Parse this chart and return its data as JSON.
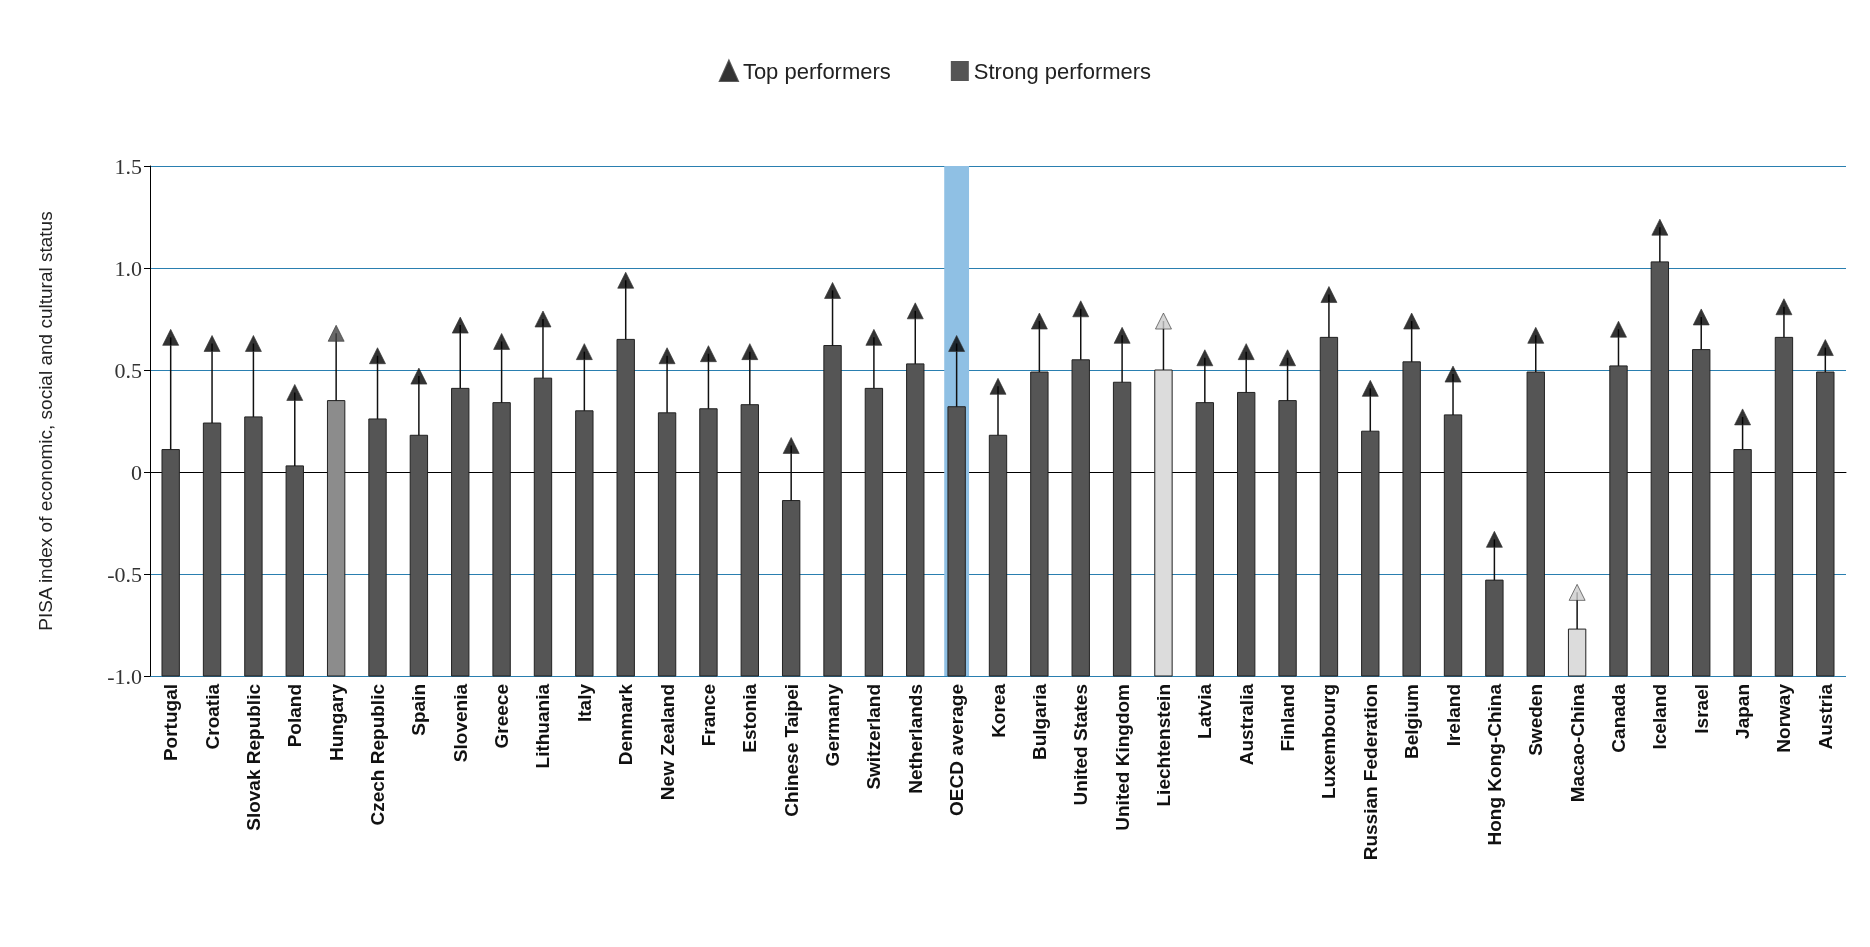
{
  "chart_data": {
    "type": "bar",
    "ylabel": "PISA index of economic, social and cultural status",
    "categories": [
      "Portugal",
      "Croatia",
      "Slovak Republic",
      "Poland",
      "Hungary",
      "Czech Republic",
      "Spain",
      "Slovenia",
      "Greece",
      "Lithuania",
      "Italy",
      "Denmark",
      "New Zealand",
      "France",
      "Estonia",
      "Chinese Taipei",
      "Germany",
      "Switzerland",
      "Netherlands",
      "OECD average",
      "Korea",
      "Bulgaria",
      "United States",
      "United Kingdom",
      "Liechtenstein",
      "Latvia",
      "Australia",
      "Finland",
      "Luxembourg",
      "Russian Federation",
      "Belgium",
      "Ireland",
      "Hong Kong-China",
      "Sweden",
      "Macao-China",
      "Canada",
      "Iceland",
      "Israel",
      "Japan",
      "Norway",
      "Austria"
    ],
    "series": [
      {
        "name": "Top performers",
        "type": "scatter",
        "color": "#000000",
        "marker": "triangle",
        "values": [
          0.66,
          0.63,
          0.63,
          0.39,
          0.68,
          0.57,
          0.47,
          0.72,
          0.64,
          0.75,
          0.59,
          0.94,
          0.57,
          0.58,
          0.59,
          0.13,
          0.89,
          0.66,
          0.79,
          0.63,
          0.42,
          0.74,
          0.8,
          0.67,
          0.74,
          0.56,
          0.59,
          0.56,
          0.87,
          0.41,
          0.74,
          0.48,
          -0.33,
          0.67,
          -0.59,
          0.7,
          1.2,
          0.76,
          0.27,
          0.81,
          0.61
        ],
        "errors": [
          [
            0.11,
            0.66
          ],
          [
            0.24,
            0.63
          ],
          [
            0.27,
            0.63
          ],
          [
            0.03,
            0.39
          ],
          [
            0.35,
            0.68
          ],
          [
            0.26,
            0.57
          ],
          [
            0.18,
            0.47
          ],
          [
            0.41,
            0.72
          ],
          [
            0.34,
            0.64
          ],
          [
            0.46,
            0.75
          ],
          [
            0.3,
            0.59
          ],
          [
            0.65,
            0.94
          ],
          [
            0.29,
            0.57
          ],
          [
            0.31,
            0.58
          ],
          [
            0.33,
            0.59
          ],
          [
            -0.14,
            0.13
          ],
          [
            0.62,
            0.89
          ],
          [
            0.41,
            0.66
          ],
          [
            0.53,
            0.79
          ],
          [
            0.32,
            0.63
          ],
          [
            0.18,
            0.42
          ],
          [
            0.49,
            0.74
          ],
          [
            0.55,
            0.8
          ],
          [
            0.44,
            0.67
          ],
          [
            0.5,
            0.74
          ],
          [
            0.34,
            0.56
          ],
          [
            0.39,
            0.59
          ],
          [
            0.35,
            0.56
          ],
          [
            0.66,
            0.87
          ],
          [
            0.2,
            0.41
          ],
          [
            0.54,
            0.74
          ],
          [
            0.28,
            0.48
          ],
          [
            -0.53,
            -0.33
          ],
          [
            0.49,
            0.67
          ],
          [
            -0.77,
            -0.59
          ],
          [
            0.52,
            0.7
          ],
          [
            1.03,
            1.2
          ],
          [
            0.6,
            0.76
          ],
          [
            0.11,
            0.27
          ],
          [
            0.66,
            0.81
          ],
          [
            0.49,
            0.61
          ]
        ],
        "colors": [
          "#000000",
          "#000000",
          "#000000",
          "#000000",
          "#444444",
          "#000000",
          "#000000",
          "#000000",
          "#000000",
          "#000000",
          "#000000",
          "#000000",
          "#000000",
          "#000000",
          "#000000",
          "#000000",
          "#000000",
          "#000000",
          "#000000",
          "#000000",
          "#000000",
          "#000000",
          "#000000",
          "#000000",
          "#cccccc",
          "#000000",
          "#000000",
          "#000000",
          "#000000",
          "#000000",
          "#000000",
          "#000000",
          "#000000",
          "#000000",
          "#cccccc",
          "#000000",
          "#000000",
          "#000000",
          "#000000",
          "#000000",
          "#000000"
        ]
      },
      {
        "name": "Strong performers",
        "color": "#555555",
        "base": [
          -1,
          -1,
          -1,
          -1,
          -1,
          -1,
          -1,
          -1,
          -1,
          -1,
          -1,
          -1,
          -1,
          -1,
          -1,
          -1,
          -1,
          -1,
          -1,
          -1,
          -1,
          -1,
          -1,
          -1,
          -1,
          -1,
          -1,
          -1,
          -1,
          -1,
          -1,
          -1,
          -1,
          -1,
          -1,
          -1,
          -1,
          -1,
          -1,
          -1,
          -1
        ],
        "values": [
          1.11,
          1.24,
          1.27,
          1.03,
          1.35,
          1.26,
          1.18,
          1.41,
          1.34,
          1.46,
          1.3,
          1.65,
          1.29,
          1.31,
          1.33,
          0.86,
          1.62,
          1.41,
          1.53,
          1.32,
          1.18,
          1.49,
          1.55,
          1.44,
          1.5,
          1.34,
          1.39,
          1.35,
          1.66,
          1.2,
          1.54,
          1.28,
          0.47,
          1.49,
          0.23,
          1.52,
          2.03,
          1.6,
          1.11,
          1.66,
          1.49
        ],
        "colors": [
          "#555555",
          "#555555",
          "#555555",
          "#555555",
          "#8c8c8c",
          "#555555",
          "#555555",
          "#555555",
          "#555555",
          "#555555",
          "#555555",
          "#555555",
          "#555555",
          "#555555",
          "#555555",
          "#555555",
          "#555555",
          "#555555",
          "#555555",
          "#555555",
          "#555555",
          "#555555",
          "#555555",
          "#555555",
          "#dcdcdc",
          "#555555",
          "#555555",
          "#555555",
          "#555555",
          "#555555",
          "#555555",
          "#555555",
          "#555555",
          "#555555",
          "#dcdcdc",
          "#555555",
          "#555555",
          "#555555",
          "#555555",
          "#555555",
          "#555555"
        ]
      }
    ],
    "ylim": [
      -1.0,
      1.5
    ],
    "yticks": [
      {
        "value": -1.0,
        "label": "-1.0"
      },
      {
        "value": -0.5,
        "label": "-0.5"
      },
      0,
      {
        "value": 0.5,
        "label": "0.5"
      },
      {
        "value": 1.0,
        "label": "1.0"
      },
      {
        "value": 1.5,
        "label": "1.5"
      }
    ],
    "grid": "y",
    "legend": "top",
    "bands": [
      {
        "axis": "x",
        "from": "OECD average",
        "to": "OECD average",
        "color": "#8fc0e4"
      }
    ]
  }
}
